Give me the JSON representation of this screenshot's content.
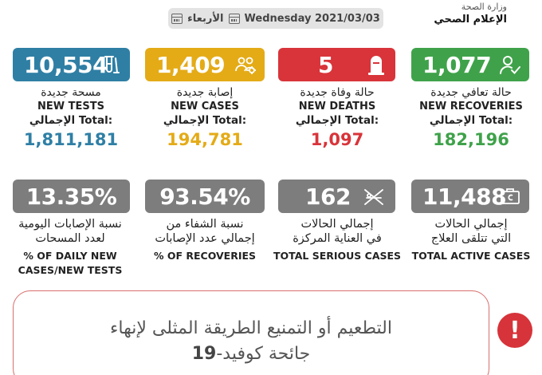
{
  "header": {
    "date_en": "Wednesday 2021/03/03",
    "date_ar": "الأربعاء",
    "ministry_line1": "وزارة الصحة",
    "ministry_line2": "الإعلام الصحي"
  },
  "stats": {
    "tests": {
      "value": "10,554",
      "label_ar": "مسحة جديدة",
      "label_en": "NEW TESTS",
      "total_label": "الإجمالي Total:",
      "total": "1,811,181",
      "color": "#2f7fa5",
      "icon": "test-tube-icon"
    },
    "cases": {
      "value": "1,409",
      "label_ar": "إصابة جديدة",
      "label_en": "NEW CASES",
      "total_label": "الإجمالي Total:",
      "total": "194,781",
      "color": "#e4ab17",
      "icon": "virus-people-icon"
    },
    "deaths": {
      "value": "5",
      "label_ar": "حالة وفاة جديدة",
      "label_en": "NEW DEATHS",
      "total_label": "الإجمالي Total:",
      "total": "1,097",
      "color": "#d8343a",
      "icon": "tombstone-icon"
    },
    "recoveries": {
      "value": "1,077",
      "label_ar": "حالة تعافي جديدة",
      "label_en": "NEW RECOVERIES",
      "total_label": "الإجمالي Total:",
      "total": "182,196",
      "color": "#3fa24a",
      "icon": "user-check-icon"
    }
  },
  "rates": {
    "daily_rate": {
      "value": "13.35%",
      "line_ar1": "نسبة الإصابات اليومية",
      "line_ar2": "لعدد المسحات",
      "line_en1": "% OF DAILY NEW",
      "line_en2": "CASES/NEW TESTS"
    },
    "recovery_rate": {
      "value": "93.54%",
      "line_ar1": "نسبة الشفاء من",
      "line_ar2": "إجمالي عدد الإصابات",
      "line_en1": "% OF RECOVERIES"
    },
    "serious": {
      "value": "162",
      "line_ar1": "إجمالي الحالات",
      "line_ar2": "في العناية المركزة",
      "line_en1": "TOTAL SERIOUS CASES",
      "icon": "hospital-bed-icon"
    },
    "active": {
      "value": "11,488",
      "line_ar1": "إجمالي الحالات",
      "line_ar2": "التي تتلقى العلاج",
      "line_en1": "TOTAL ACTIVE CASES",
      "icon": "medicine-box-icon"
    }
  },
  "banner": {
    "line1": "التطعيم أو التمنيع الطريقة المثلى لإنهاء",
    "line2_text": "جائحة كوفيد-",
    "line2_num": "19",
    "alert_symbol": "!"
  }
}
